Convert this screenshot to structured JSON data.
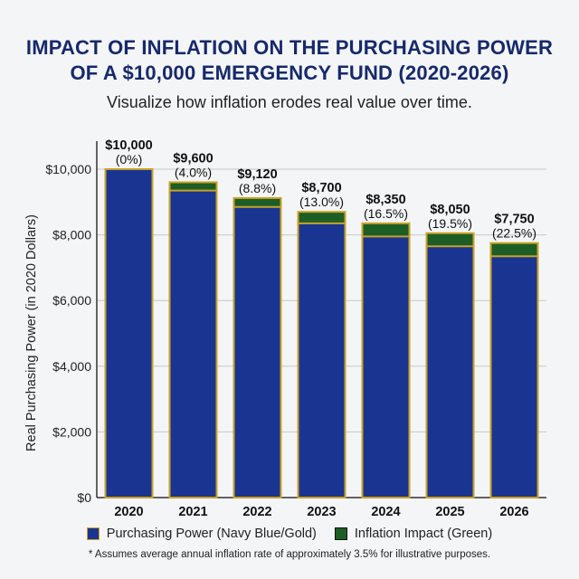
{
  "title_line1": "IMPACT OF INFLATION ON THE PURCHASING POWER",
  "title_line2": "OF A $10,000 EMERGENCY FUND (2020-2026)",
  "subtitle": "Visualize how inflation erodes real value over time.",
  "legend": {
    "purchasing_power": "Purchasing Power (Navy Blue/Gold)",
    "inflation_impact": "Inflation Impact (Green)"
  },
  "footnote": "* Assumes average annual inflation rate of approximately 3.5% for illustrative purposes.",
  "colors": {
    "navy": "#1a3591",
    "gold": "#c9a227",
    "green": "#1d5e26",
    "title": "#16296b"
  },
  "chart_data": {
    "type": "bar",
    "ylabel": "Real Purchasing Power (in 2020 Dollars)",
    "ylim": [
      0,
      10000
    ],
    "yticks": [
      "$0",
      "$2,000",
      "$4,000",
      "$6,000",
      "$8,000",
      "$10,000"
    ],
    "categories": [
      "2020",
      "2021",
      "2022",
      "2023",
      "2024",
      "2025",
      "2026"
    ],
    "series": [
      {
        "name": "Purchasing Power (Navy Blue/Gold)",
        "values": [
          10000,
          9350,
          8850,
          8350,
          7950,
          7650,
          7350
        ]
      },
      {
        "name": "Inflation Impact (Green)",
        "values": [
          0,
          250,
          270,
          350,
          400,
          400,
          400
        ]
      }
    ],
    "totals": [
      10000,
      9600,
      9120,
      8700,
      8350,
      8050,
      7750
    ],
    "value_labels": [
      "$10,000",
      "$9,600",
      "$9,120",
      "$8,700",
      "$8,350",
      "$8,050",
      "$7,750"
    ],
    "percent_labels": [
      "(0%)",
      "(4.0%)",
      "(8.8%)",
      "(13.0%)",
      "(16.5%)",
      "(19.5%)",
      "(22.5%)"
    ],
    "grid": true
  }
}
